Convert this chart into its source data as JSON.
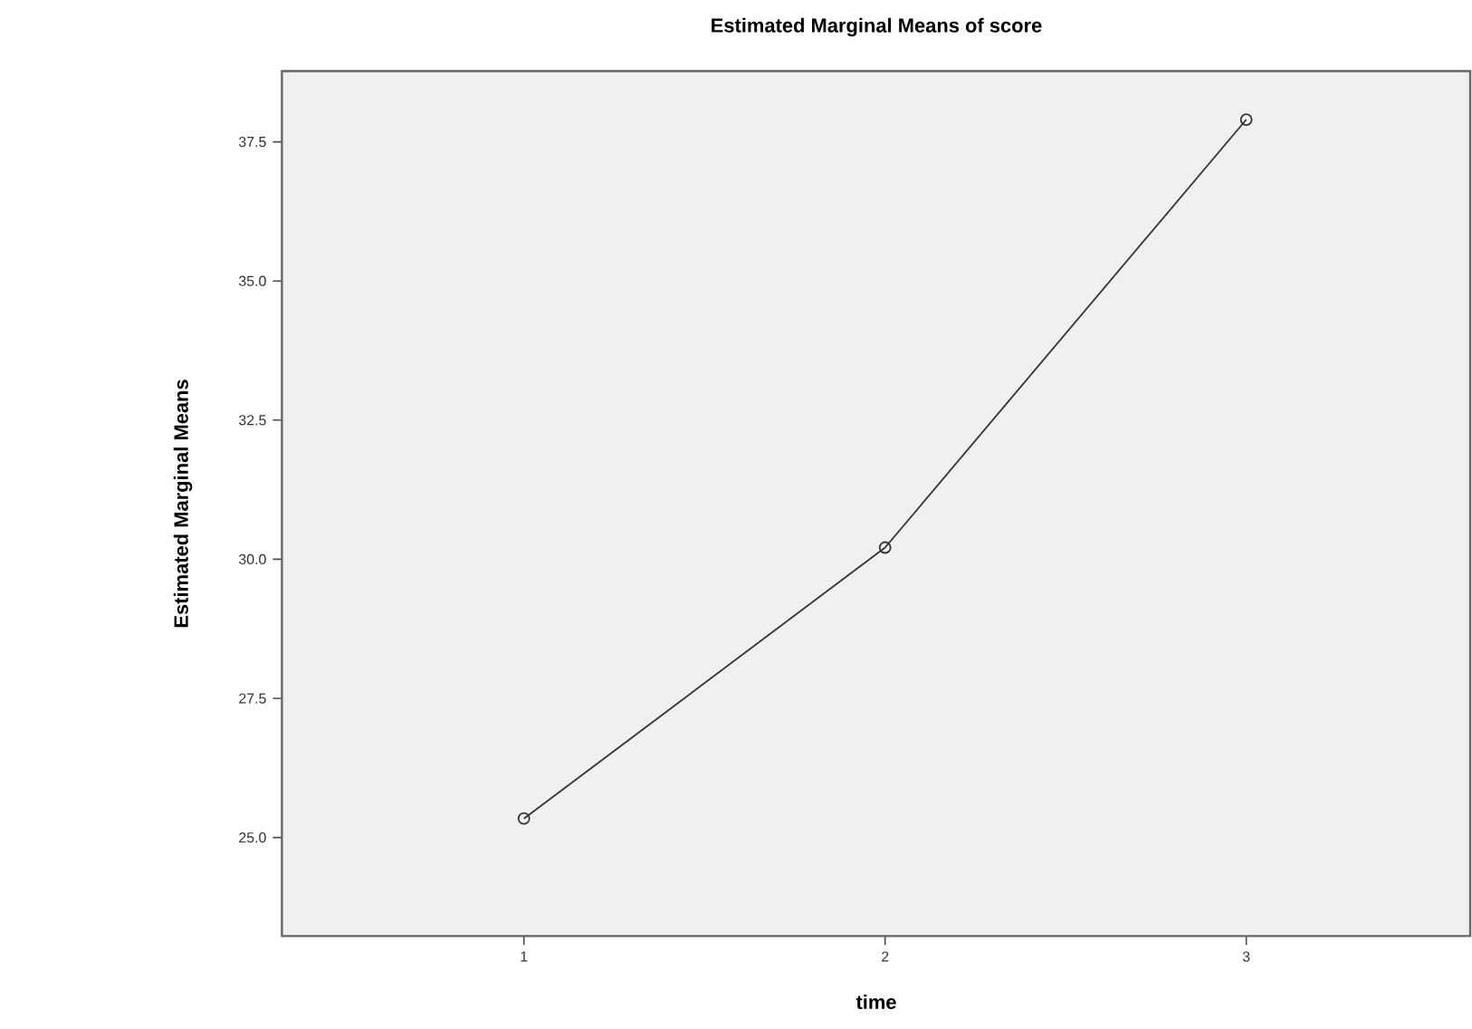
{
  "chart_data": {
    "type": "line",
    "title": "Estimated Marginal Means of score",
    "xlabel": "time",
    "ylabel": "Estimated Marginal Means",
    "categories": [
      "1",
      "2",
      "3"
    ],
    "values": [
      25.34,
      30.21,
      37.9
    ],
    "color": "#333333",
    "ylim": [
      23.23,
      38.77
    ],
    "yticks": [
      {
        "value": 25,
        "label": "25.0"
      },
      {
        "value": 27.5,
        "label": "27.5"
      },
      {
        "value": 30,
        "label": "30.0"
      },
      {
        "value": 32.5,
        "label": "32.5"
      },
      {
        "value": 35,
        "label": "35.0"
      },
      {
        "value": 37.5,
        "label": "37.5"
      }
    ],
    "marker": "circle",
    "line_style": "solid",
    "grid": false
  }
}
